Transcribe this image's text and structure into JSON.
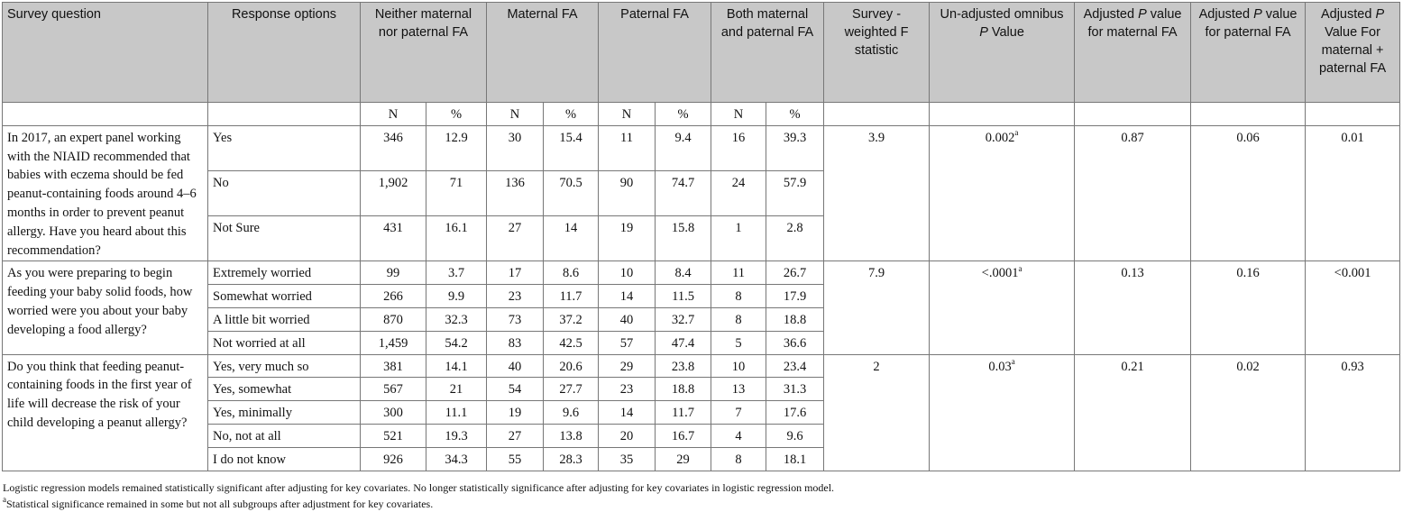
{
  "headers": {
    "survey_question": "Survey question",
    "response_options": "Response options",
    "neither": "Neither maternal nor paternal FA",
    "maternal": "Maternal FA",
    "paternal": "Paternal FA",
    "both": "Both maternal and paternal FA",
    "f_stat": "Survey -weighted F statistic",
    "unadjusted_pre": "Un-adjusted omnibus ",
    "unadjusted_p": "P",
    "unadjusted_post": " Value",
    "adj_maternal_pre": "Adjusted ",
    "adj_maternal_p": "P",
    "adj_maternal_post": " value for maternal FA",
    "adj_paternal_pre": "Adjusted ",
    "adj_paternal_p": "P",
    "adj_paternal_post": " value for paternal FA",
    "adj_both_pre": "Adjusted ",
    "adj_both_p": "P",
    "adj_both_post": " Value For maternal + paternal FA"
  },
  "subheaders": [
    "N",
    "%",
    "N",
    "%",
    "N",
    "%",
    "N",
    "%"
  ],
  "groups": [
    {
      "question": "In 2017, an expert panel working with the NIAID recommended that babies with eczema should be fed peanut-containing foods around 4–6 months in order to prevent peanut allergy. Have you heard about this recommendation?",
      "f_stat": "3.9",
      "unadjusted": "0.002",
      "unadjusted_sup": "a",
      "adj_maternal": "0.87",
      "adj_paternal": "0.06",
      "adj_both": "0.01",
      "rows": [
        {
          "option": "Yes",
          "values": [
            "346",
            "12.9",
            "30",
            "15.4",
            "11",
            "9.4",
            "16",
            "39.3"
          ]
        },
        {
          "option": "No",
          "values": [
            "1,902",
            "71",
            "136",
            "70.5",
            "90",
            "74.7",
            "24",
            "57.9"
          ]
        },
        {
          "option": "Not Sure",
          "values": [
            "431",
            "16.1",
            "27",
            "14",
            "19",
            "15.8",
            "1",
            "2.8"
          ]
        }
      ]
    },
    {
      "question": "As you were preparing to begin feeding your baby solid foods, how worried were you about your baby developing a food allergy?",
      "f_stat": "7.9",
      "unadjusted": "<.0001",
      "unadjusted_sup": "a",
      "adj_maternal": "0.13",
      "adj_paternal": "0.16",
      "adj_both": "<0.001",
      "rows": [
        {
          "option": "Extremely worried",
          "values": [
            "99",
            "3.7",
            "17",
            "8.6",
            "10",
            "8.4",
            "11",
            "26.7"
          ]
        },
        {
          "option": "Somewhat worried",
          "values": [
            "266",
            "9.9",
            "23",
            "11.7",
            "14",
            "11.5",
            "8",
            "17.9"
          ]
        },
        {
          "option": "A little bit worried",
          "values": [
            "870",
            "32.3",
            "73",
            "37.2",
            "40",
            "32.7",
            "8",
            "18.8"
          ]
        },
        {
          "option": "Not worried at all",
          "values": [
            "1,459",
            "54.2",
            "83",
            "42.5",
            "57",
            "47.4",
            "5",
            "36.6"
          ]
        }
      ]
    },
    {
      "question": "Do you think that feeding peanut-containing foods in the first year of life will decrease the risk of your child developing a peanut allergy?",
      "f_stat": "2",
      "unadjusted": "0.03",
      "unadjusted_sup": "a",
      "adj_maternal": "0.21",
      "adj_paternal": "0.02",
      "adj_both": "0.93",
      "rows": [
        {
          "option": "Yes, very much so",
          "values": [
            "381",
            "14.1",
            "40",
            "20.6",
            "29",
            "23.8",
            "10",
            "23.4"
          ]
        },
        {
          "option": "Yes, somewhat",
          "values": [
            "567",
            "21",
            "54",
            "27.7",
            "23",
            "18.8",
            "13",
            "31.3"
          ]
        },
        {
          "option": "Yes, minimally",
          "values": [
            "300",
            "11.1",
            "19",
            "9.6",
            "14",
            "11.7",
            "7",
            "17.6"
          ]
        },
        {
          "option": "No, not at all",
          "values": [
            "521",
            "19.3",
            "27",
            "13.8",
            "20",
            "16.7",
            "4",
            "9.6"
          ]
        },
        {
          "option": "I do not know",
          "values": [
            "926",
            "34.3",
            "55",
            "28.3",
            "35",
            "29",
            "8",
            "18.1"
          ]
        }
      ]
    }
  ],
  "footnotes": {
    "line1": "Logistic regression models remained statistically significant after adjusting for key covariates. No longer statistically significance after adjusting for key covariates in logistic regression model.",
    "line2_sup": "a",
    "line2": "Statistical significance remained in some but not all subgroups after adjustment for key covariates."
  }
}
